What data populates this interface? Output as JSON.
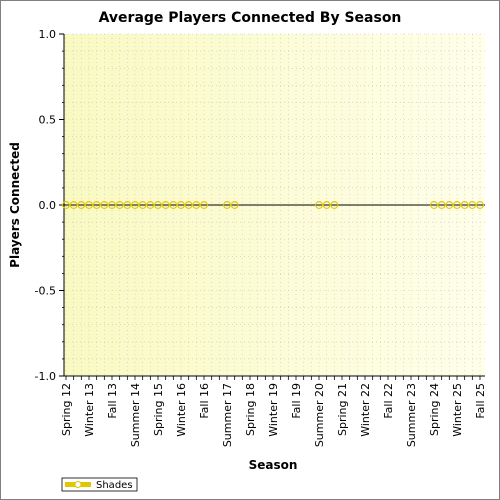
{
  "chart_data": {
    "type": "line",
    "title": "Average Players Connected By Season",
    "xlabel": "Season",
    "ylabel": "Players Connected",
    "ylim": [
      -1.0,
      1.0
    ],
    "y_ticks": [
      "1.0",
      "0.5",
      "0.0",
      "-0.5",
      "-1.0"
    ],
    "y_tick_values": [
      1.0,
      0.5,
      0.0,
      -0.5,
      -1.0
    ],
    "x_tick_labels": [
      "Spring 12",
      "Winter 13",
      "Fall 13",
      "Summer 14",
      "Spring 15",
      "Winter 16",
      "Fall 16",
      "Summer 17",
      "Spring 18",
      "Winter 19",
      "Fall 19",
      "Summer 20",
      "Spring 21",
      "Winter 22",
      "Fall 22",
      "Summer 23",
      "Spring 24",
      "Winter 25",
      "Fall 25"
    ],
    "grid": true,
    "legend_position": "bottom-left",
    "series": [
      {
        "name": "Shades",
        "color": "#e0c800",
        "points": [
          {
            "x": "Spring 12",
            "y": 0
          },
          {
            "x": "Summer 12",
            "y": 0
          },
          {
            "x": "Fall 12",
            "y": 0
          },
          {
            "x": "Winter 13",
            "y": 0
          },
          {
            "x": "Spring 13",
            "y": 0
          },
          {
            "x": "Summer 13",
            "y": 0
          },
          {
            "x": "Fall 13",
            "y": 0
          },
          {
            "x": "Winter 14",
            "y": 0
          },
          {
            "x": "Spring 14",
            "y": 0
          },
          {
            "x": "Summer 14",
            "y": 0
          },
          {
            "x": "Fall 14",
            "y": 0
          },
          {
            "x": "Winter 15",
            "y": 0
          },
          {
            "x": "Spring 15",
            "y": 0
          },
          {
            "x": "Summer 15",
            "y": 0
          },
          {
            "x": "Fall 15",
            "y": 0
          },
          {
            "x": "Winter 16",
            "y": 0
          },
          {
            "x": "Spring 16",
            "y": 0
          },
          {
            "x": "Summer 16",
            "y": 0
          },
          {
            "x": "Fall 16",
            "y": 0
          },
          {
            "x": "Summer 17",
            "y": 0
          },
          {
            "x": "Fall 17",
            "y": 0
          },
          {
            "x": "Summer 20",
            "y": 0
          },
          {
            "x": "Fall 20",
            "y": 0
          },
          {
            "x": "Winter 21",
            "y": 0
          },
          {
            "x": "Spring 24",
            "y": 0
          },
          {
            "x": "Summer 24",
            "y": 0
          },
          {
            "x": "Fall 24",
            "y": 0
          },
          {
            "x": "Winter 25",
            "y": 0
          },
          {
            "x": "Spring 25",
            "y": 0
          },
          {
            "x": "Summer 25",
            "y": 0
          },
          {
            "x": "Fall 25",
            "y": 0
          }
        ]
      }
    ]
  }
}
